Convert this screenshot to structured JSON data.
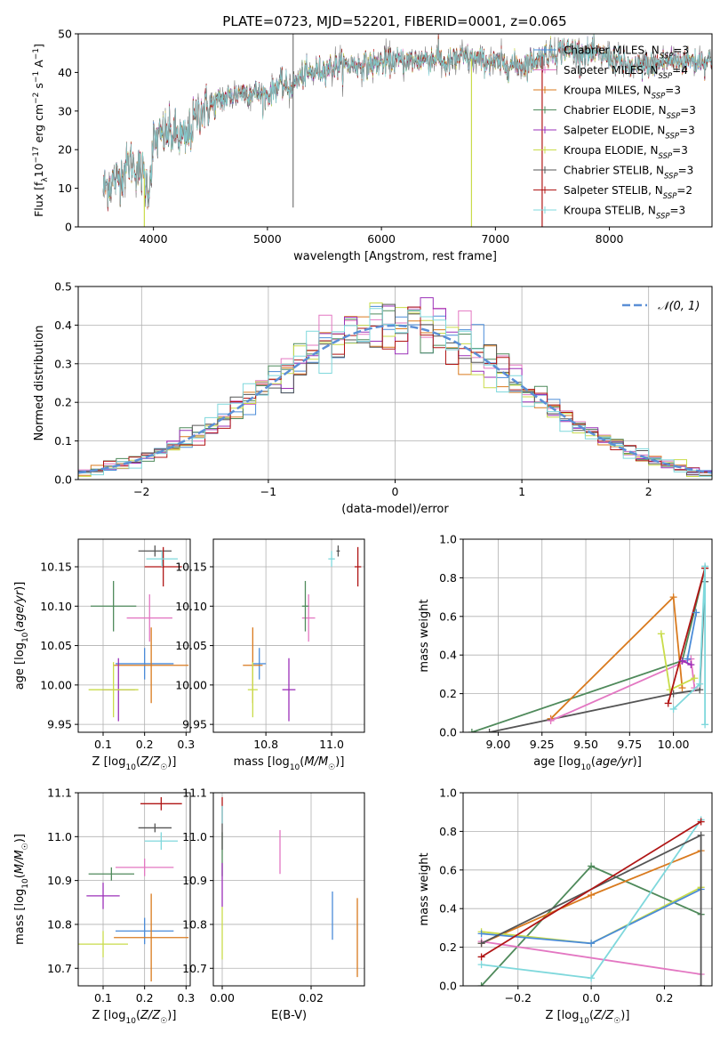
{
  "figure_title": "PLATE=0723, MJD=52201, FIBERID=0001, z=0.065",
  "colors": {
    "Chabrier MILES": "#4a8bd8",
    "Salpeter MILES": "#e377c2",
    "Kroupa MILES": "#d97a1e",
    "Chabrier ELODIE": "#4f8a5b",
    "Salpeter ELODIE": "#9b30b8",
    "Kroupa ELODIE": "#c9dc4a",
    "Chabrier STELIB": "#555555",
    "Salpeter STELIB": "#b01515",
    "Kroupa STELIB": "#7fd8dc",
    "data": "#777777",
    "normal": "#5b8fd6"
  },
  "chart_data": [
    {
      "type": "line",
      "id": "spectrum",
      "title": "PLATE=0723, MJD=52201, FIBERID=0001, z=0.065",
      "xlabel": "wavelength [Angstrom, rest frame]",
      "ylabel": "Flux [f_λ 10^-17 erg cm^-2 s^-1 A^-1]",
      "ylabel_parts": {
        "pre": "Flux [f",
        "sub": "λ",
        "mid": "10",
        "sup1": "−17",
        "mid2": " erg cm",
        "sup2": "−2",
        "mid3": " s",
        "sup3": "−1",
        "mid4": " A",
        "sup4": "−1",
        "post": "]"
      },
      "xlim": [
        3340,
        8900
      ],
      "ylim": [
        0,
        50
      ],
      "xticks": [
        4000,
        5000,
        6000,
        7000,
        8000
      ],
      "yticks": [
        0,
        10,
        20,
        30,
        40,
        50
      ],
      "grid": false,
      "legend_position": "right",
      "continuum_nodes": [
        [
          3560,
          10
        ],
        [
          3700,
          13
        ],
        [
          3800,
          17
        ],
        [
          3900,
          14
        ],
        [
          3960,
          10
        ],
        [
          4000,
          22
        ],
        [
          4100,
          24
        ],
        [
          4200,
          24
        ],
        [
          4280,
          22
        ],
        [
          4400,
          30
        ],
        [
          4600,
          33
        ],
        [
          4800,
          35
        ],
        [
          5000,
          34
        ],
        [
          5100,
          37
        ],
        [
          5200,
          36
        ],
        [
          5300,
          39
        ],
        [
          5500,
          41
        ],
        [
          5700,
          42
        ],
        [
          5900,
          42
        ],
        [
          6100,
          43
        ],
        [
          6300,
          43
        ],
        [
          6500,
          44
        ],
        [
          6563,
          42
        ],
        [
          6700,
          44
        ],
        [
          6900,
          43
        ],
        [
          7100,
          42
        ],
        [
          7250,
          42
        ],
        [
          7400,
          44
        ],
        [
          7600,
          46
        ],
        [
          7800,
          45
        ],
        [
          8000,
          44
        ],
        [
          8200,
          41
        ],
        [
          8500,
          43
        ],
        [
          8900,
          43
        ]
      ],
      "spikes": [
        {
          "x": 5225,
          "y": 5,
          "series": "data"
        },
        {
          "x": 5225,
          "y": 50,
          "series": "data"
        },
        {
          "x": 6790,
          "y": 0,
          "series": "Kroupa ELODIE"
        },
        {
          "x": 7410,
          "y": 0,
          "series": "Salpeter STELIB"
        },
        {
          "x": 3920,
          "y": 0,
          "series": "Kroupa ELODIE"
        }
      ],
      "series": [
        {
          "name": "Chabrier MILES",
          "legend_pre": "Chabrier MILES, N",
          "legend_sub": "SSP",
          "legend_post": "=3"
        },
        {
          "name": "Salpeter MILES",
          "legend_pre": "Salpeter MILES, N",
          "legend_sub": "SSP",
          "legend_post": "=4"
        },
        {
          "name": "Kroupa MILES",
          "legend_pre": "Kroupa MILES, N",
          "legend_sub": "SSP",
          "legend_post": "=3"
        },
        {
          "name": "Chabrier ELODIE",
          "legend_pre": "Chabrier ELODIE, N",
          "legend_sub": "SSP",
          "legend_post": "=3"
        },
        {
          "name": "Salpeter ELODIE",
          "legend_pre": "Salpeter ELODIE, N",
          "legend_sub": "SSP",
          "legend_post": "=3"
        },
        {
          "name": "Kroupa ELODIE",
          "legend_pre": "Kroupa ELODIE, N",
          "legend_sub": "SSP",
          "legend_post": "=3"
        },
        {
          "name": "Chabrier STELIB",
          "legend_pre": "Chabrier STELIB, N",
          "legend_sub": "SSP",
          "legend_post": "=3"
        },
        {
          "name": "Salpeter STELIB",
          "legend_pre": "Salpeter STELIB, N",
          "legend_sub": "SSP",
          "legend_post": "=2"
        },
        {
          "name": "Kroupa STELIB",
          "legend_pre": "Kroupa STELIB, N",
          "legend_sub": "SSP",
          "legend_post": "=3"
        }
      ]
    },
    {
      "type": "histogram",
      "id": "residuals",
      "xlabel": "(data-model)/error",
      "ylabel": "Normed distribution",
      "xlim": [
        -2.5,
        2.5
      ],
      "ylim": [
        0,
        0.5
      ],
      "xticks": [
        -2,
        -1,
        0,
        1,
        2
      ],
      "yticks": [
        0.0,
        0.1,
        0.2,
        0.3,
        0.4,
        0.5
      ],
      "bin_width": 0.1,
      "grid": true,
      "legend": "𝒩(0, 1)",
      "legend_position": "top-right",
      "normal_curve": {
        "mean": 0,
        "sigma": 1
      }
    },
    {
      "type": "scatter",
      "id": "age_vs_Z",
      "xlabel": "Z [log10(Z/Z☉)]",
      "ylabel": "age  [log10(age/yr)]",
      "xlim": [
        0.04,
        0.31
      ],
      "ylim": [
        9.94,
        10.185
      ],
      "xticks": [
        0.1,
        0.2,
        0.3
      ],
      "yticks": [
        9.95,
        10.0,
        10.05,
        10.1,
        10.15
      ],
      "grid": true,
      "points": [
        {
          "series": "Chabrier MILES",
          "x": 0.2,
          "y": 10.027,
          "xerr": 0.07,
          "yerr": 0.02
        },
        {
          "series": "Salpeter MILES",
          "x": 0.212,
          "y": 10.085,
          "xerr": 0.055,
          "yerr": 0.03
        },
        {
          "series": "Kroupa MILES",
          "x": 0.216,
          "y": 10.025,
          "xerr": 0.09,
          "yerr": 0.048
        },
        {
          "series": "Chabrier ELODIE",
          "x": 0.125,
          "y": 10.1,
          "xerr": 0.055,
          "yerr": 0.032
        },
        {
          "series": "Salpeter ELODIE",
          "x": 0.137,
          "y": 9.994,
          "xerr": 0.04,
          "yerr": 0.04
        },
        {
          "series": "Kroupa ELODIE",
          "x": 0.125,
          "y": 9.994,
          "xerr": 0.06,
          "yerr": 0.035
        },
        {
          "series": "Chabrier STELIB",
          "x": 0.225,
          "y": 10.17,
          "xerr": 0.04,
          "yerr": 0.007
        },
        {
          "series": "Salpeter STELIB",
          "x": 0.245,
          "y": 10.15,
          "xerr": 0.045,
          "yerr": 0.025
        },
        {
          "series": "Kroupa STELIB",
          "x": 0.242,
          "y": 10.16,
          "xerr": 0.038,
          "yerr": 0.01
        }
      ]
    },
    {
      "type": "scatter",
      "id": "age_vs_mass",
      "xlabel": "mass [log10(M/M☉)]",
      "ylabel": "",
      "xlim": [
        10.64,
        11.1
      ],
      "ylim": [
        9.94,
        10.185
      ],
      "xticks": [
        10.8,
        11.0
      ],
      "yticks": [
        9.95,
        10.0,
        10.05,
        10.1,
        10.15
      ],
      "grid": true,
      "points": [
        {
          "series": "Chabrier MILES",
          "x": 10.78,
          "y": 10.027,
          "xerr": 0.02,
          "yerr": 0.02
        },
        {
          "series": "Salpeter MILES",
          "x": 10.93,
          "y": 10.085,
          "xerr": 0.02,
          "yerr": 0.03
        },
        {
          "series": "Kroupa MILES",
          "x": 10.76,
          "y": 10.025,
          "xerr": 0.03,
          "yerr": 0.048
        },
        {
          "series": "Chabrier ELODIE",
          "x": 10.92,
          "y": 10.1,
          "xerr": 0.01,
          "yerr": 0.032
        },
        {
          "series": "Salpeter ELODIE",
          "x": 10.87,
          "y": 9.994,
          "xerr": 0.02,
          "yerr": 0.04
        },
        {
          "series": "Kroupa ELODIE",
          "x": 10.76,
          "y": 9.994,
          "xerr": 0.015,
          "yerr": 0.035
        },
        {
          "series": "Chabrier STELIB",
          "x": 11.02,
          "y": 10.17,
          "xerr": 0.005,
          "yerr": 0.007
        },
        {
          "series": "Salpeter STELIB",
          "x": 11.08,
          "y": 10.15,
          "xerr": 0.01,
          "yerr": 0.025
        },
        {
          "series": "Kroupa STELIB",
          "x": 11.0,
          "y": 10.16,
          "xerr": 0.01,
          "yerr": 0.01
        }
      ]
    },
    {
      "type": "line",
      "id": "weight_vs_age",
      "xlabel": "age  [log10(age/yr)]",
      "ylabel": "mass weight",
      "xlim": [
        8.8,
        10.22
      ],
      "ylim": [
        0,
        1.0
      ],
      "xticks": [
        9.0,
        9.25,
        9.5,
        9.75,
        10.0
      ],
      "yticks": [
        0.0,
        0.2,
        0.4,
        0.6,
        0.8,
        1.0
      ],
      "grid": true,
      "series": [
        {
          "name": "Chabrier ELODIE",
          "points": [
            [
              8.85,
              0.0
            ],
            [
              10.05,
              0.37
            ],
            [
              10.18,
              0.85
            ]
          ]
        },
        {
          "name": "Chabrier STELIB",
          "points": [
            [
              8.95,
              0.0
            ],
            [
              10.0,
              0.2
            ],
            [
              10.15,
              0.22
            ],
            [
              10.18,
              0.78
            ]
          ]
        },
        {
          "name": "Kroupa MILES",
          "points": [
            [
              9.3,
              0.07
            ],
            [
              10.0,
              0.7
            ],
            [
              10.05,
              0.23
            ]
          ]
        },
        {
          "name": "Salpeter MILES",
          "points": [
            [
              9.3,
              0.06
            ],
            [
              10.1,
              0.38
            ],
            [
              10.12,
              0.23
            ]
          ]
        },
        {
          "name": "Kroupa ELODIE",
          "points": [
            [
              9.93,
              0.51
            ],
            [
              9.98,
              0.22
            ],
            [
              10.12,
              0.28
            ]
          ]
        },
        {
          "name": "Salpeter STELIB",
          "points": [
            [
              9.97,
              0.15
            ],
            [
              10.18,
              0.85
            ]
          ]
        },
        {
          "name": "Kroupa STELIB",
          "points": [
            [
              10.0,
              0.12
            ],
            [
              10.15,
              0.25
            ],
            [
              10.18,
              0.86
            ],
            [
              10.18,
              0.04
            ]
          ]
        },
        {
          "name": "Chabrier MILES",
          "points": [
            [
              10.08,
              0.38
            ],
            [
              10.13,
              0.62
            ]
          ]
        },
        {
          "name": "Salpeter ELODIE",
          "points": [
            [
              10.05,
              0.37
            ],
            [
              10.1,
              0.35
            ]
          ]
        }
      ]
    },
    {
      "type": "scatter",
      "id": "mass_vs_Z",
      "xlabel": "Z [log10(Z/Z☉)]",
      "ylabel": "mass [log10(M/M☉)]",
      "xlim": [
        0.04,
        0.31
      ],
      "ylim": [
        10.66,
        11.1
      ],
      "xticks": [
        0.1,
        0.2,
        0.3
      ],
      "yticks": [
        10.7,
        10.8,
        10.9,
        11.0,
        11.1
      ],
      "grid": true,
      "points": [
        {
          "series": "Chabrier MILES",
          "x": 0.2,
          "y": 10.785,
          "xerr": 0.07,
          "yerr": 0.03
        },
        {
          "series": "Salpeter MILES",
          "x": 0.2,
          "y": 10.93,
          "xerr": 0.07,
          "yerr": 0.02
        },
        {
          "series": "Kroupa MILES",
          "x": 0.216,
          "y": 10.77,
          "xerr": 0.09,
          "yerr": 0.1
        },
        {
          "series": "Chabrier ELODIE",
          "x": 0.12,
          "y": 10.915,
          "xerr": 0.055,
          "yerr": 0.015
        },
        {
          "series": "Salpeter ELODIE",
          "x": 0.1,
          "y": 10.865,
          "xerr": 0.04,
          "yerr": 0.03
        },
        {
          "series": "Kroupa ELODIE",
          "x": 0.1,
          "y": 10.755,
          "xerr": 0.06,
          "yerr": 0.03
        },
        {
          "series": "Chabrier STELIB",
          "x": 0.225,
          "y": 11.02,
          "xerr": 0.04,
          "yerr": 0.01
        },
        {
          "series": "Salpeter STELIB",
          "x": 0.24,
          "y": 11.075,
          "xerr": 0.05,
          "yerr": 0.015
        },
        {
          "series": "Kroupa STELIB",
          "x": 0.24,
          "y": 10.99,
          "xerr": 0.04,
          "yerr": 0.02
        }
      ]
    },
    {
      "type": "scatter",
      "id": "mass_vs_ebv",
      "xlabel": "E(B-V)",
      "ylabel": "",
      "xlim": [
        -0.002,
        0.032
      ],
      "ylim": [
        10.66,
        11.1
      ],
      "xticks": [
        0.0,
        0.02
      ],
      "yticks": [
        10.7,
        10.8,
        10.9,
        11.0,
        11.1
      ],
      "grid": true,
      "points": [
        {
          "series": "Chabrier MILES",
          "x": 0.0248,
          "y": 10.82,
          "yerr": 0.055
        },
        {
          "series": "Salpeter MILES",
          "x": 0.013,
          "y": 10.965,
          "yerr": 0.05
        },
        {
          "series": "Kroupa MILES",
          "x": 0.0304,
          "y": 10.77,
          "yerr": 0.09
        },
        {
          "series": "Chabrier ELODIE",
          "x": 0.0,
          "y": 10.96,
          "yerr": 0.05
        },
        {
          "series": "Salpeter ELODIE",
          "x": 0.0,
          "y": 10.89,
          "yerr": 0.05
        },
        {
          "series": "Kroupa ELODIE",
          "x": 0.0,
          "y": 10.78,
          "yerr": 0.06
        },
        {
          "series": "Chabrier STELIB",
          "x": 0.0,
          "y": 11.0,
          "yerr": 0.03
        },
        {
          "series": "Salpeter STELIB",
          "x": 0.0,
          "y": 11.06,
          "yerr": 0.03
        },
        {
          "series": "Kroupa STELIB",
          "x": 0.0,
          "y": 11.05,
          "yerr": 0.02
        }
      ]
    },
    {
      "type": "line",
      "id": "weight_vs_Z",
      "xlabel": "Z [log10(Z/Z☉)]",
      "ylabel": "mass weight",
      "xlim": [
        -0.35,
        0.33
      ],
      "ylim": [
        0,
        1.0
      ],
      "xticks": [
        -0.2,
        0.0,
        0.2
      ],
      "yticks": [
        0.0,
        0.2,
        0.4,
        0.6,
        0.8,
        1.0
      ],
      "grid": true,
      "series": [
        {
          "name": "Chabrier ELODIE",
          "points": [
            [
              -0.3,
              0.0
            ],
            [
              0.0,
              0.62
            ],
            [
              0.3,
              0.37
            ]
          ]
        },
        {
          "name": "Kroupa MILES",
          "points": [
            [
              -0.3,
              0.22
            ],
            [
              0.0,
              0.47
            ],
            [
              0.3,
              0.7
            ]
          ]
        },
        {
          "name": "Salpeter MILES",
          "points": [
            [
              -0.3,
              0.23
            ],
            [
              0.3,
              0.06
            ]
          ]
        },
        {
          "name": "Kroupa ELODIE",
          "points": [
            [
              -0.3,
              0.28
            ],
            [
              0.0,
              0.22
            ],
            [
              0.3,
              0.51
            ]
          ]
        },
        {
          "name": "Chabrier MILES",
          "points": [
            [
              -0.3,
              0.27
            ],
            [
              0.0,
              0.22
            ],
            [
              0.3,
              0.5
            ]
          ]
        },
        {
          "name": "Kroupa STELIB",
          "points": [
            [
              -0.3,
              0.11
            ],
            [
              0.0,
              0.04
            ],
            [
              0.3,
              0.86
            ]
          ]
        },
        {
          "name": "Chabrier STELIB",
          "points": [
            [
              -0.3,
              0.22
            ],
            [
              0.3,
              0.78
            ],
            [
              0.3,
              0.0
            ]
          ]
        },
        {
          "name": "Salpeter STELIB",
          "points": [
            [
              -0.3,
              0.15
            ],
            [
              0.3,
              0.85
            ]
          ]
        }
      ]
    }
  ]
}
